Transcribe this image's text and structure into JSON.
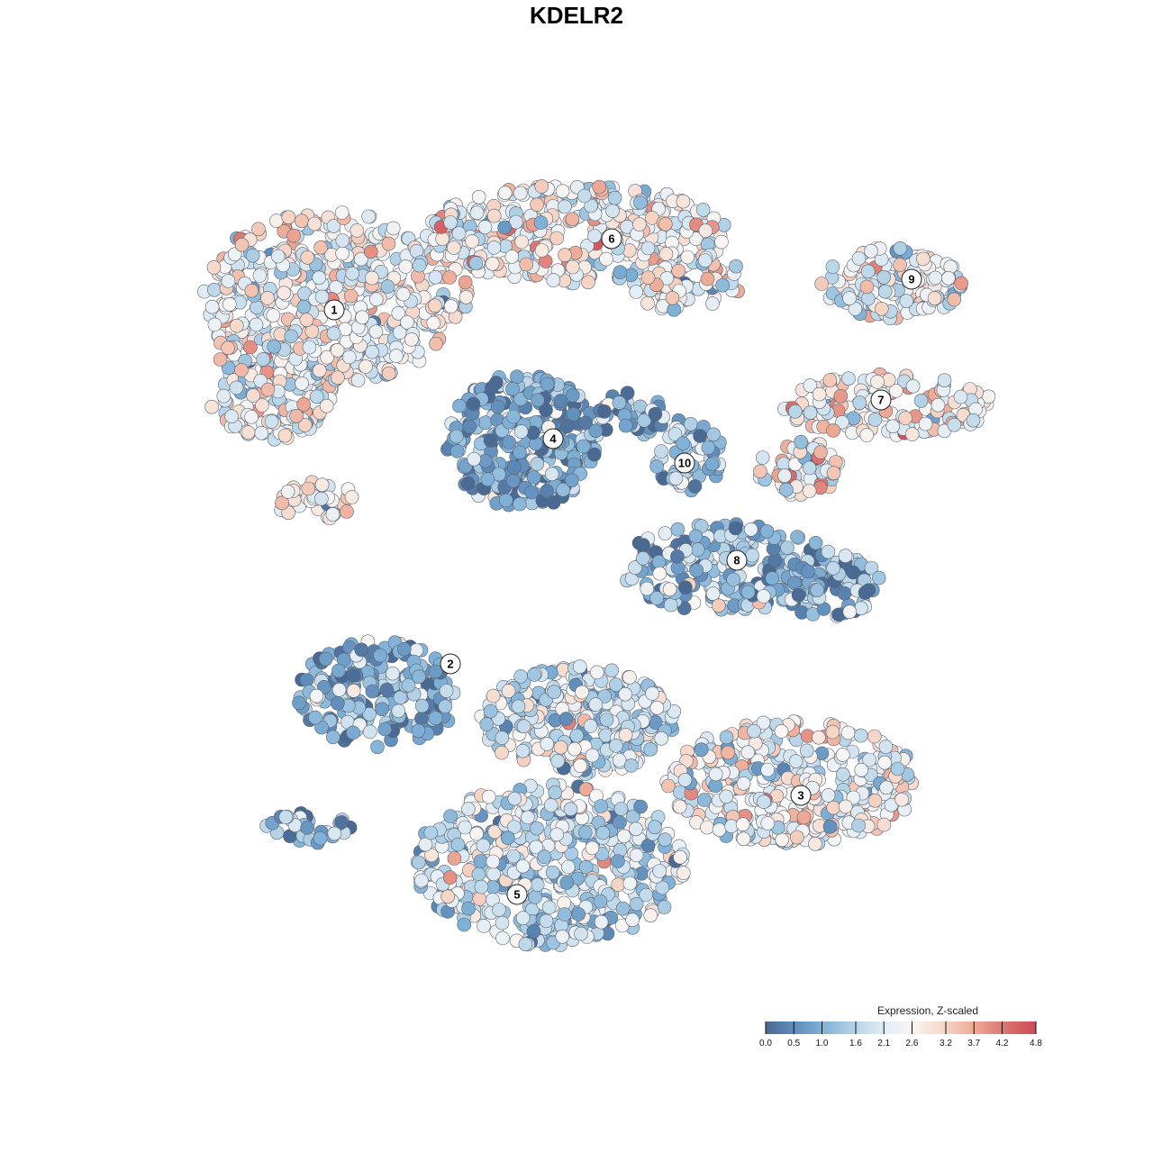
{
  "chart_data": {
    "type": "scatter",
    "title": "KDELR2",
    "xlabel": "",
    "ylabel": "",
    "grid": false,
    "legend_placement": "bottom-right",
    "colors": {
      "low": "#4a6a94",
      "mid_low": "#7fb0d6",
      "mid": "#f4f4f4",
      "mid_high": "#f1b7a0",
      "high": "#cc4a55"
    },
    "colorbar": {
      "title": "Expression, Z-scaled",
      "min": 0.0,
      "max": 4.8,
      "ticks": [
        0.0,
        0.5,
        1.0,
        1.6,
        2.1,
        2.6,
        3.2,
        3.7,
        4.2,
        4.8
      ],
      "tick_labels": [
        "0.0",
        "0.5",
        "1.0",
        "1.6",
        "2.1",
        "2.6",
        "3.2",
        "3.7",
        "4.2",
        "4.8"
      ]
    },
    "clusters": [
      {
        "label": "1",
        "mean_expression": 2.4
      },
      {
        "label": "2",
        "mean_expression": 1.0
      },
      {
        "label": "3",
        "mean_expression": 2.4
      },
      {
        "label": "4",
        "mean_expression": 0.9
      },
      {
        "label": "5",
        "mean_expression": 1.9
      },
      {
        "label": "6",
        "mean_expression": 2.5
      },
      {
        "label": "7",
        "mean_expression": 2.5
      },
      {
        "label": "8",
        "mean_expression": 1.2
      },
      {
        "label": "9",
        "mean_expression": 2.3
      },
      {
        "label": "10",
        "mean_expression": 1.3
      }
    ]
  }
}
